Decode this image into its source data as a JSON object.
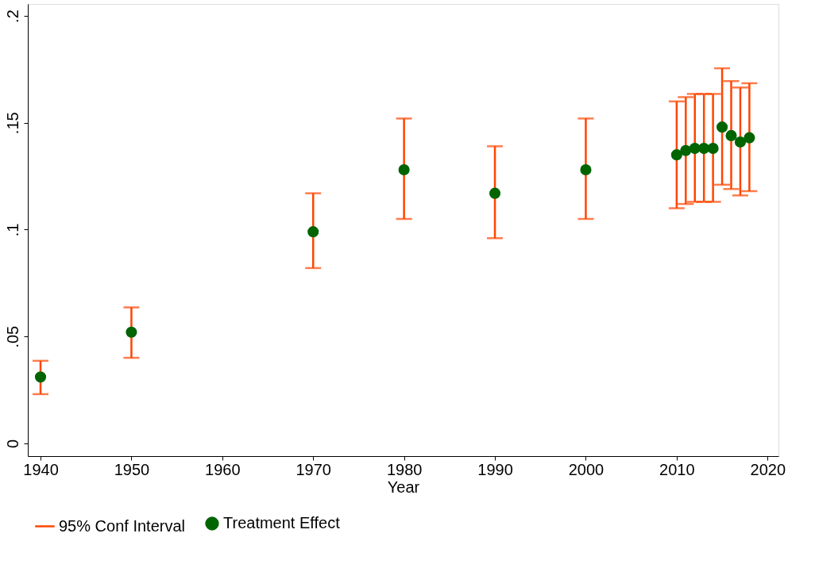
{
  "chart_data": {
    "type": "scatter",
    "xlabel": "Year",
    "x": [
      1940,
      1950,
      1970,
      1980,
      1990,
      2000,
      2010,
      2011,
      2012,
      2013,
      2014,
      2015,
      2016,
      2017,
      2018
    ],
    "series": [
      {
        "name": "Treatment Effect",
        "color": "#006400",
        "values": [
          0.031,
          0.052,
          0.099,
          0.128,
          0.117,
          0.128,
          0.135,
          0.137,
          0.138,
          0.138,
          0.138,
          0.148,
          0.144,
          0.141,
          0.143
        ],
        "errors": [
          [
            0.023,
            0.0386
          ],
          [
            0.04,
            0.0636
          ],
          [
            0.082,
            0.117
          ],
          [
            0.105,
            0.152
          ],
          [
            0.096,
            0.139
          ],
          [
            0.105,
            0.152
          ],
          [
            0.11,
            0.16
          ],
          [
            0.112,
            0.162
          ],
          [
            0.113,
            0.1635
          ],
          [
            0.113,
            0.1635
          ],
          [
            0.113,
            0.1635
          ],
          [
            0.121,
            0.1755
          ],
          [
            0.119,
            0.1695
          ],
          [
            0.116,
            0.1665
          ],
          [
            0.118,
            0.1685
          ]
        ]
      }
    ],
    "annotations": [
      "95% Conf Interval"
    ],
    "xlim": [
      1938.6,
      2021.2
    ],
    "xticks": [
      1940,
      1950,
      1960,
      1970,
      1980,
      1990,
      2000,
      2010,
      2020
    ],
    "ylim": [
      -0.006,
      0.2056
    ],
    "yticks": [
      0,
      {
        "value": 0.05,
        "label": ".05"
      },
      {
        "value": 0.1,
        "label": ".1"
      },
      {
        "value": 0.15,
        "label": ".15"
      },
      {
        "value": 0.2,
        "label": ".2"
      }
    ],
    "grid": false,
    "legend": "bottom",
    "marker": "circle"
  }
}
